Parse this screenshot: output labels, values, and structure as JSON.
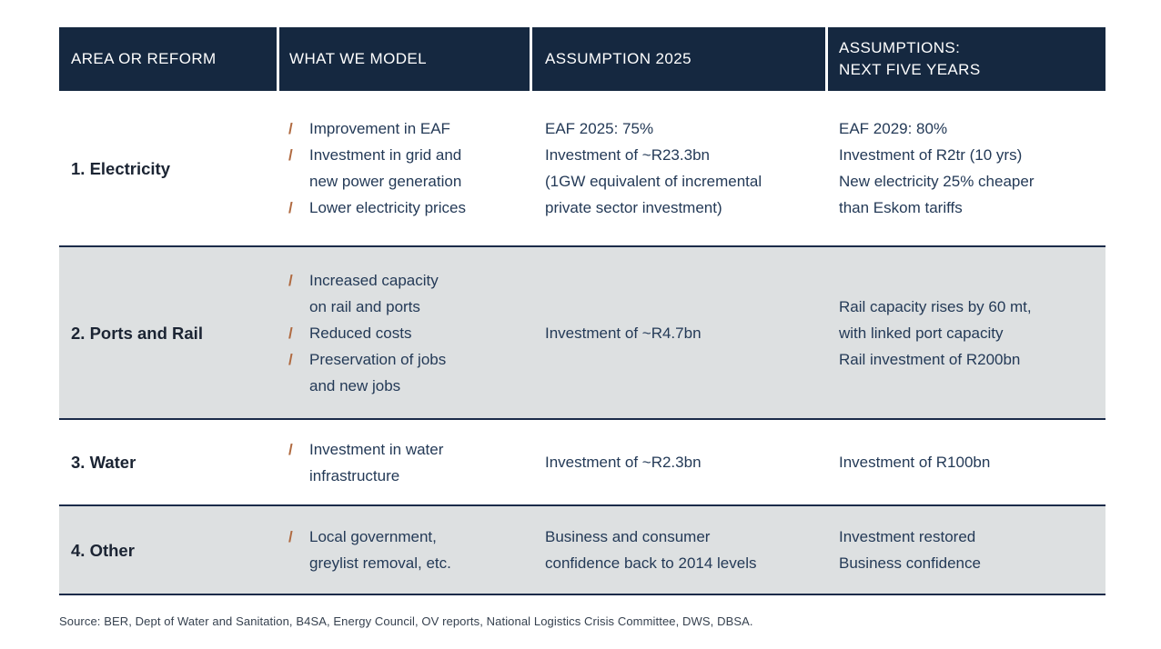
{
  "table": {
    "columns": [
      {
        "label": "AREA OR REFORM"
      },
      {
        "label": "WHAT WE MODEL"
      },
      {
        "label": "ASSUMPTION 2025"
      },
      {
        "label": "ASSUMPTIONS:\nNEXT FIVE YEARS"
      }
    ],
    "rows": [
      {
        "area": "1. Electricity",
        "model_items": [
          "Improvement in EAF",
          "Investment in grid and\nnew power generation",
          "Lower electricity prices"
        ],
        "assumption_2025": "EAF 2025: 75%\nInvestment of ~R23.3bn\n(1GW equivalent of incremental\nprivate sector investment)",
        "assumptions_next_five_years": "EAF 2029: 80%\nInvestment of R2tr (10 yrs)\nNew electricity 25% cheaper\nthan Eskom tariffs"
      },
      {
        "area": "2. Ports and Rail",
        "model_items": [
          "Increased capacity\non rail and ports",
          "Reduced costs",
          "Preservation of jobs\nand new jobs"
        ],
        "assumption_2025": "Investment of ~R4.7bn",
        "assumptions_next_five_years": "Rail capacity rises by 60 mt,\nwith linked port capacity\nRail investment of R200bn"
      },
      {
        "area": "3. Water",
        "model_items": [
          "Investment in water\ninfrastructure"
        ],
        "assumption_2025": "Investment of ~R2.3bn",
        "assumptions_next_five_years": "Investment of R100bn"
      },
      {
        "area": "4. Other",
        "model_items": [
          "Local government,\ngreylist removal, etc."
        ],
        "assumption_2025": "Business and consumer\nconfidence back to 2014 levels",
        "assumptions_next_five_years": "Investment restored\nBusiness confidence"
      }
    ]
  },
  "icons": {
    "bullet_glyph": "/"
  },
  "colors": {
    "header_bg": "#152840",
    "header_text": "#ffffff",
    "row_bg": "#ffffff",
    "row_alt_bg": "#dde0e1",
    "divider": "#1b2b49",
    "bullet": "#b06a40",
    "body_text": "#243a57",
    "area_text": "#1b2433",
    "source_text": "#36414f"
  },
  "source": "Source: BER, Dept of Water and Sanitation, B4SA, Energy Council, OV reports, National Logistics Crisis Committee, DWS, DBSA."
}
